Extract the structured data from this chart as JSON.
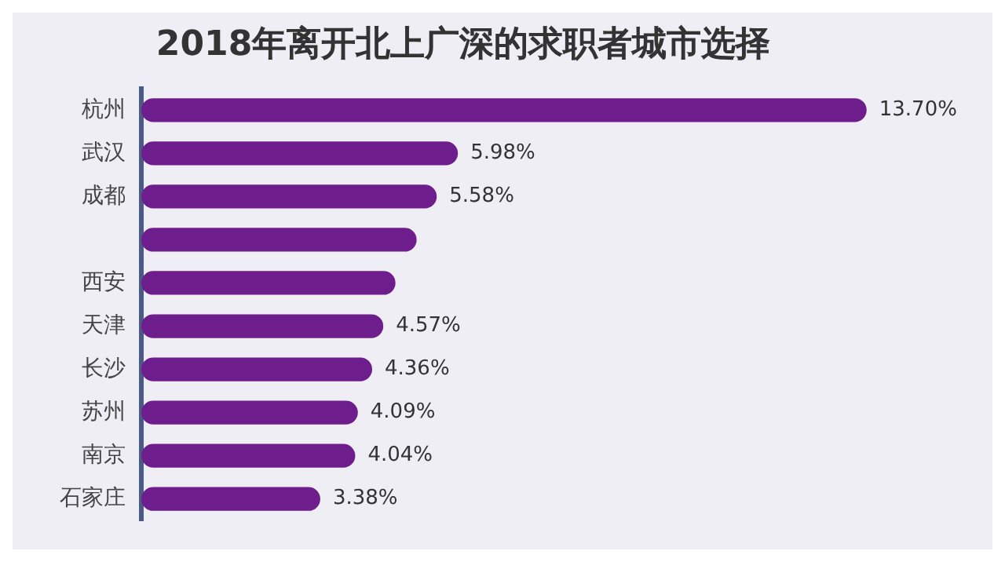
{
  "chart_data": {
    "type": "bar",
    "orientation": "horizontal",
    "title": "2018年离开北上广深的求职者城市选择",
    "categories": [
      "杭州",
      "武汉",
      "成都",
      null,
      "西安",
      "天津",
      "长沙",
      "苏州",
      "南京",
      "石家庄"
    ],
    "values": [
      13.7,
      5.98,
      5.58,
      5.2,
      4.8,
      4.57,
      4.36,
      4.09,
      4.04,
      3.38
    ],
    "value_labels": [
      "13.70%",
      "5.98%",
      "5.58%",
      null,
      null,
      "4.57%",
      "4.36%",
      "4.09%",
      "4.04%",
      "3.38%"
    ],
    "color": "#6e1d8c",
    "legend": false
  }
}
